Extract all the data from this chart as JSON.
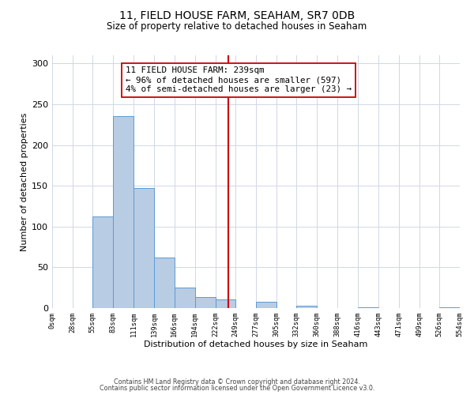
{
  "title": "11, FIELD HOUSE FARM, SEAHAM, SR7 0DB",
  "subtitle": "Size of property relative to detached houses in Seaham",
  "xlabel": "Distribution of detached houses by size in Seaham",
  "ylabel": "Number of detached properties",
  "bar_edges": [
    0,
    28,
    55,
    83,
    111,
    139,
    166,
    194,
    222,
    249,
    277,
    305,
    332,
    360,
    388,
    416,
    443,
    471,
    499,
    526,
    554
  ],
  "bar_heights": [
    0,
    0,
    112,
    235,
    147,
    62,
    25,
    14,
    11,
    0,
    8,
    0,
    3,
    0,
    0,
    1,
    0,
    0,
    0,
    1
  ],
  "bar_color": "#b8cce4",
  "bar_edge_color": "#5b9bd5",
  "vline_x": 239,
  "vline_color": "#cc0000",
  "annotation_title": "11 FIELD HOUSE FARM: 239sqm",
  "annotation_line1": "← 96% of detached houses are smaller (597)",
  "annotation_line2": "4% of semi-detached houses are larger (23) →",
  "annotation_box_color": "#ffffff",
  "annotation_box_edge_color": "#cc0000",
  "ylim": [
    0,
    310
  ],
  "tick_labels": [
    "0sqm",
    "28sqm",
    "55sqm",
    "83sqm",
    "111sqm",
    "139sqm",
    "166sqm",
    "194sqm",
    "222sqm",
    "249sqm",
    "277sqm",
    "305sqm",
    "332sqm",
    "360sqm",
    "388sqm",
    "416sqm",
    "443sqm",
    "471sqm",
    "499sqm",
    "526sqm",
    "554sqm"
  ],
  "footnote1": "Contains HM Land Registry data © Crown copyright and database right 2024.",
  "footnote2": "Contains public sector information licensed under the Open Government Licence v3.0.",
  "bg_color": "#ffffff",
  "grid_color": "#d0d8e4",
  "yticks": [
    0,
    50,
    100,
    150,
    200,
    250,
    300
  ],
  "ylim_max": 310
}
